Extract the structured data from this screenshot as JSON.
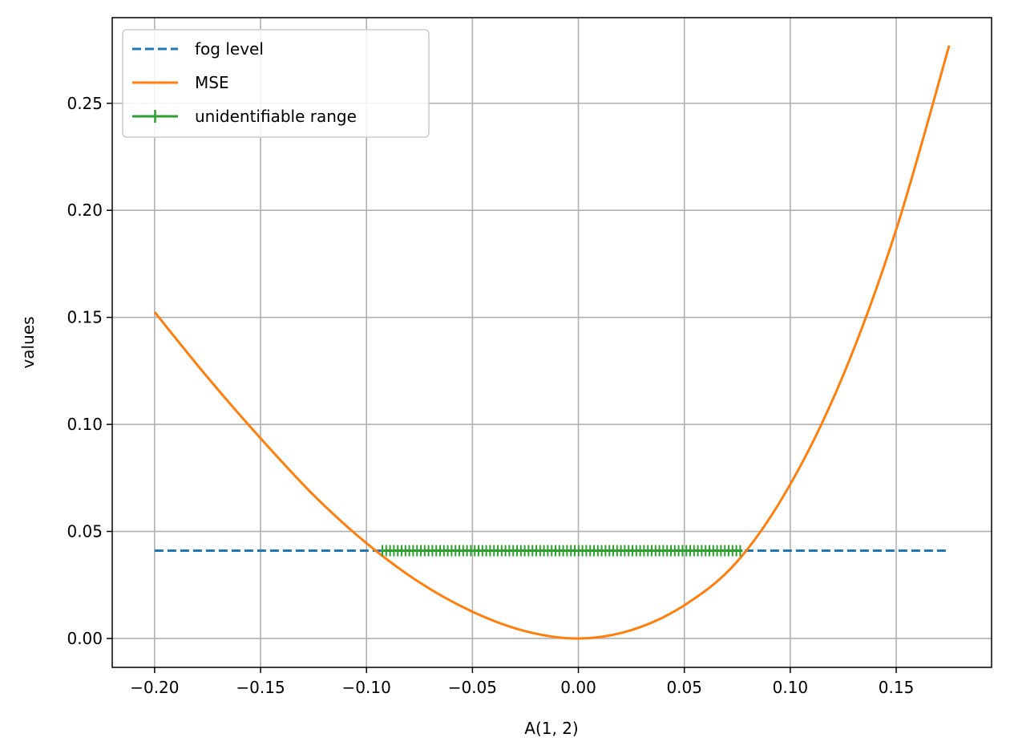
{
  "chart_data": {
    "type": "line",
    "title": "",
    "xlabel": "A(1, 2)",
    "ylabel": "values",
    "xlim": [
      -0.22,
      0.195
    ],
    "ylim": [
      -0.0135,
      0.29
    ],
    "grid": true,
    "legend_position": "upper-left",
    "x_ticks": [
      -0.2,
      -0.15,
      -0.1,
      -0.05,
      0.0,
      0.05,
      0.1,
      0.15
    ],
    "x_tick_labels": [
      "−0.20",
      "−0.15",
      "−0.10",
      "−0.05",
      "0.00",
      "0.05",
      "0.10",
      "0.15"
    ],
    "y_ticks": [
      0.0,
      0.05,
      0.1,
      0.15,
      0.2,
      0.25
    ],
    "y_tick_labels": [
      "0.00",
      "0.05",
      "0.10",
      "0.15",
      "0.20",
      "0.25"
    ],
    "series": [
      {
        "name": "fog level",
        "style": "dashed",
        "color": "#1f77b4",
        "x": [
          -0.2,
          0.175
        ],
        "y": [
          0.041,
          0.041
        ]
      },
      {
        "name": "MSE",
        "style": "solid",
        "color": "#ff7f0e",
        "x": [
          -0.2,
          -0.175,
          -0.15,
          -0.125,
          -0.1,
          -0.075,
          -0.05,
          -0.025,
          0.0,
          0.025,
          0.05,
          0.075,
          0.1,
          0.125,
          0.15,
          0.175
        ],
        "y": [
          0.1525,
          0.122,
          0.0935,
          0.067,
          0.0445,
          0.0262,
          0.0125,
          0.0034,
          0.0,
          0.0039,
          0.0155,
          0.036,
          0.072,
          0.123,
          0.191,
          0.277
        ]
      },
      {
        "name": "unidentifiable range",
        "style": "markers",
        "marker": "+",
        "color": "#2ca02c",
        "x_start": -0.0925,
        "x_end": 0.0775,
        "y": 0.041
      }
    ]
  }
}
